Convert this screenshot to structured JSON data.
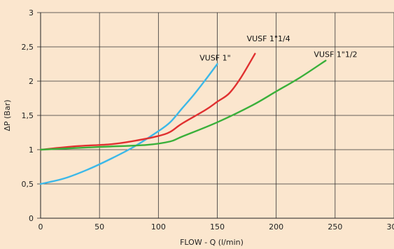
{
  "chart_data": {
    "type": "line",
    "xlabel": "FLOW - Q (l/min)",
    "ylabel": "ΔP (Bar)",
    "xlim": [
      0,
      300
    ],
    "ylim": [
      0,
      3
    ],
    "x_ticks": [
      0,
      50,
      100,
      150,
      200,
      250,
      300
    ],
    "x_tick_labels": [
      "0",
      "50",
      "100",
      "150",
      "200",
      "250",
      "300"
    ],
    "y_ticks": [
      0,
      0.5,
      1,
      1.5,
      2,
      2.5,
      3
    ],
    "y_tick_labels": [
      "0",
      "0,5",
      "1",
      "1,5",
      "2",
      "2,5",
      "3"
    ],
    "grid": true,
    "background_color": "#fbe6ce",
    "plot_background_color": "#fbe6ce",
    "series": [
      {
        "name": "VUSF 1\"",
        "color": "#3bb8e8",
        "points": [
          [
            0,
            0.5
          ],
          [
            20,
            0.58
          ],
          [
            40,
            0.71
          ],
          [
            60,
            0.87
          ],
          [
            80,
            1.05
          ],
          [
            100,
            1.27
          ],
          [
            110,
            1.4
          ],
          [
            120,
            1.6
          ],
          [
            130,
            1.8
          ],
          [
            140,
            2.02
          ],
          [
            150,
            2.25
          ]
        ]
      },
      {
        "name": "VUSF 1\"1/4",
        "color": "#e03030",
        "points": [
          [
            0,
            1.0
          ],
          [
            30,
            1.05
          ],
          [
            60,
            1.08
          ],
          [
            80,
            1.13
          ],
          [
            100,
            1.2
          ],
          [
            110,
            1.26
          ],
          [
            120,
            1.38
          ],
          [
            140,
            1.58
          ],
          [
            150,
            1.7
          ],
          [
            160,
            1.82
          ],
          [
            170,
            2.05
          ],
          [
            182,
            2.4
          ]
        ]
      },
      {
        "name": "VUSF 1\"1/2",
        "color": "#3ab03a",
        "points": [
          [
            0,
            1.0
          ],
          [
            50,
            1.04
          ],
          [
            90,
            1.07
          ],
          [
            110,
            1.12
          ],
          [
            120,
            1.19
          ],
          [
            150,
            1.4
          ],
          [
            180,
            1.65
          ],
          [
            200,
            1.85
          ],
          [
            220,
            2.05
          ],
          [
            242,
            2.3
          ]
        ]
      }
    ],
    "annotations": [
      {
        "text": "VUSF 1\"",
        "series": 0,
        "x": 135,
        "y": 2.3
      },
      {
        "text": "VUSF 1\"1/4",
        "series": 1,
        "x": 175,
        "y": 2.58
      },
      {
        "text": "VUSF 1\"1/2",
        "series": 2,
        "x": 232,
        "y": 2.35
      }
    ]
  }
}
